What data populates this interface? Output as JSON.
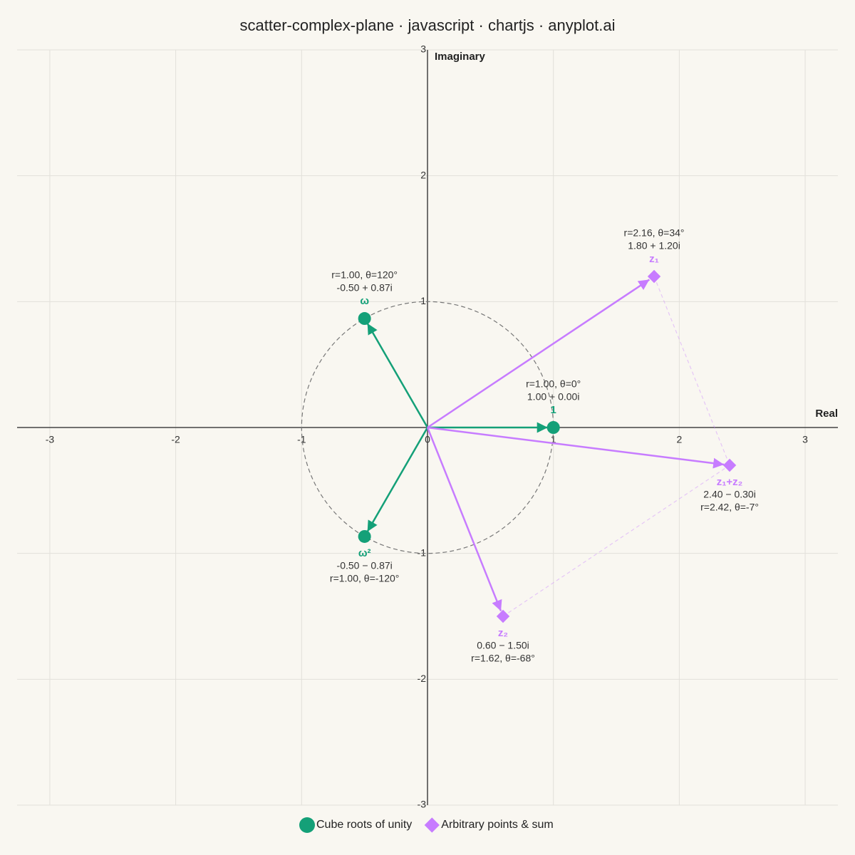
{
  "chart_data": {
    "type": "scatter",
    "title": "scatter-complex-plane · javascript · chartjs · anyplot.ai",
    "xlabel": "Real",
    "ylabel": "Imaginary",
    "xlim": [
      -3.26,
      3.26
    ],
    "ylim": [
      -3,
      3
    ],
    "xticks": [
      -3,
      -2,
      -1,
      0,
      1,
      2,
      3
    ],
    "yticks": [
      -3,
      -2,
      -1,
      1,
      2,
      3
    ],
    "grid": true,
    "unit_circle": true,
    "arrows": true,
    "parallelogram": true,
    "legend": "bottom",
    "series": [
      {
        "name": "Cube roots of unity",
        "color": "#14a078",
        "marker": "circle",
        "x": [
          1,
          -0.5,
          -0.5
        ],
        "values": [
          0,
          0.866,
          -0.866
        ],
        "labels": [
          "1",
          "ω",
          "ω²"
        ],
        "rect_labels": [
          "1.00 + 0.00i",
          "-0.50 + 0.87i",
          "-0.50 − 0.87i"
        ],
        "polar_labels": [
          "r=1.00, θ=0°",
          "r=1.00, θ=120°",
          "r=1.00, θ=-120°"
        ]
      },
      {
        "name": "Arbitrary points & sum",
        "color": "#c77cff",
        "marker": "diamond",
        "x": [
          1.8,
          0.6,
          2.4
        ],
        "values": [
          1.2,
          -1.5,
          -0.3
        ],
        "labels": [
          "z₁",
          "z₂",
          "z₁+z₂"
        ],
        "rect_labels": [
          "1.80 + 1.20i",
          "0.60 − 1.50i",
          "2.40 − 0.30i"
        ],
        "polar_labels": [
          "r=2.16, θ=34°",
          "r=1.62, θ=-68°",
          "r=2.42, θ=-7°"
        ]
      }
    ]
  }
}
